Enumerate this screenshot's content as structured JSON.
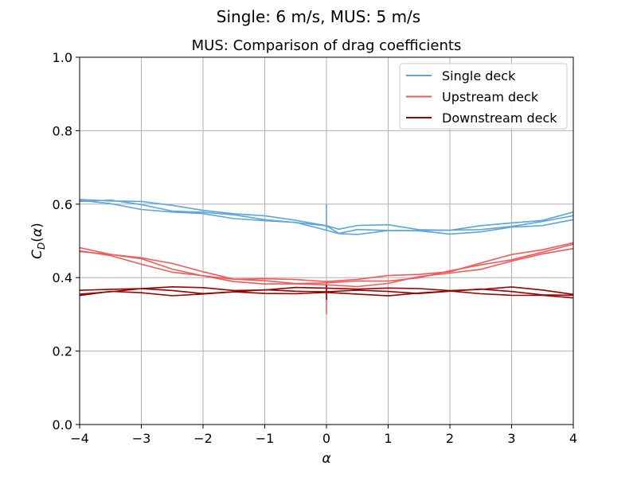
{
  "figure": {
    "suptitle": "Single: 6 m/s, MUS: 5 m/s"
  },
  "chart_data": {
    "type": "line",
    "title": "MUS: Comparison of drag coefficients",
    "xlabel": "α",
    "ylabel": "C_D(α)",
    "xlim": [
      -4,
      4
    ],
    "ylim": [
      0,
      1.0
    ],
    "xticks": [
      -4,
      -3,
      -2,
      -1,
      0,
      1,
      2,
      3,
      4
    ],
    "xtick_labels": [
      "−4",
      "−3",
      "−2",
      "−1",
      "0",
      "1",
      "2",
      "3",
      "4"
    ],
    "yticks": [
      0.0,
      0.2,
      0.4,
      0.6,
      0.8,
      1.0
    ],
    "ytick_labels": [
      "0.0",
      "0.2",
      "0.4",
      "0.6",
      "0.8",
      "1.0"
    ],
    "grid": true,
    "legend_placement": "top-right",
    "series": [
      {
        "name": "Single deck",
        "color": "#5DA5DA",
        "x": [
          -4,
          -3.5,
          -3,
          -2.5,
          -2,
          -1.5,
          -1,
          -0.5,
          0,
          0.2,
          0.5,
          1,
          1.5,
          2,
          2.5,
          3,
          3.5,
          4
        ],
        "y": [
          0.61,
          0.605,
          0.595,
          0.585,
          0.58,
          0.57,
          0.56,
          0.55,
          0.535,
          0.525,
          0.53,
          0.535,
          0.53,
          0.525,
          0.53,
          0.54,
          0.55,
          0.57
        ]
      },
      {
        "name": "Upstream deck",
        "color": "#F15A5A",
        "x": [
          -4,
          -3.5,
          -3,
          -2.5,
          -2,
          -1.5,
          -1,
          -0.5,
          0,
          0.5,
          1,
          1.5,
          2,
          2.5,
          3,
          3.5,
          4
        ],
        "y": [
          0.475,
          0.46,
          0.445,
          0.425,
          0.41,
          0.395,
          0.39,
          0.385,
          0.383,
          0.387,
          0.395,
          0.405,
          0.415,
          0.43,
          0.45,
          0.47,
          0.49
        ]
      },
      {
        "name": "Downstream deck",
        "color": "#990000",
        "x": [
          -4,
          -3.5,
          -3,
          -2.5,
          -2,
          -1.5,
          -1,
          -0.5,
          0,
          0.5,
          1,
          1.5,
          2,
          2.5,
          3,
          3.5,
          4
        ],
        "y": [
          0.357,
          0.362,
          0.364,
          0.363,
          0.363,
          0.364,
          0.363,
          0.362,
          0.362,
          0.363,
          0.363,
          0.363,
          0.363,
          0.362,
          0.361,
          0.357,
          0.352
        ]
      }
    ]
  }
}
